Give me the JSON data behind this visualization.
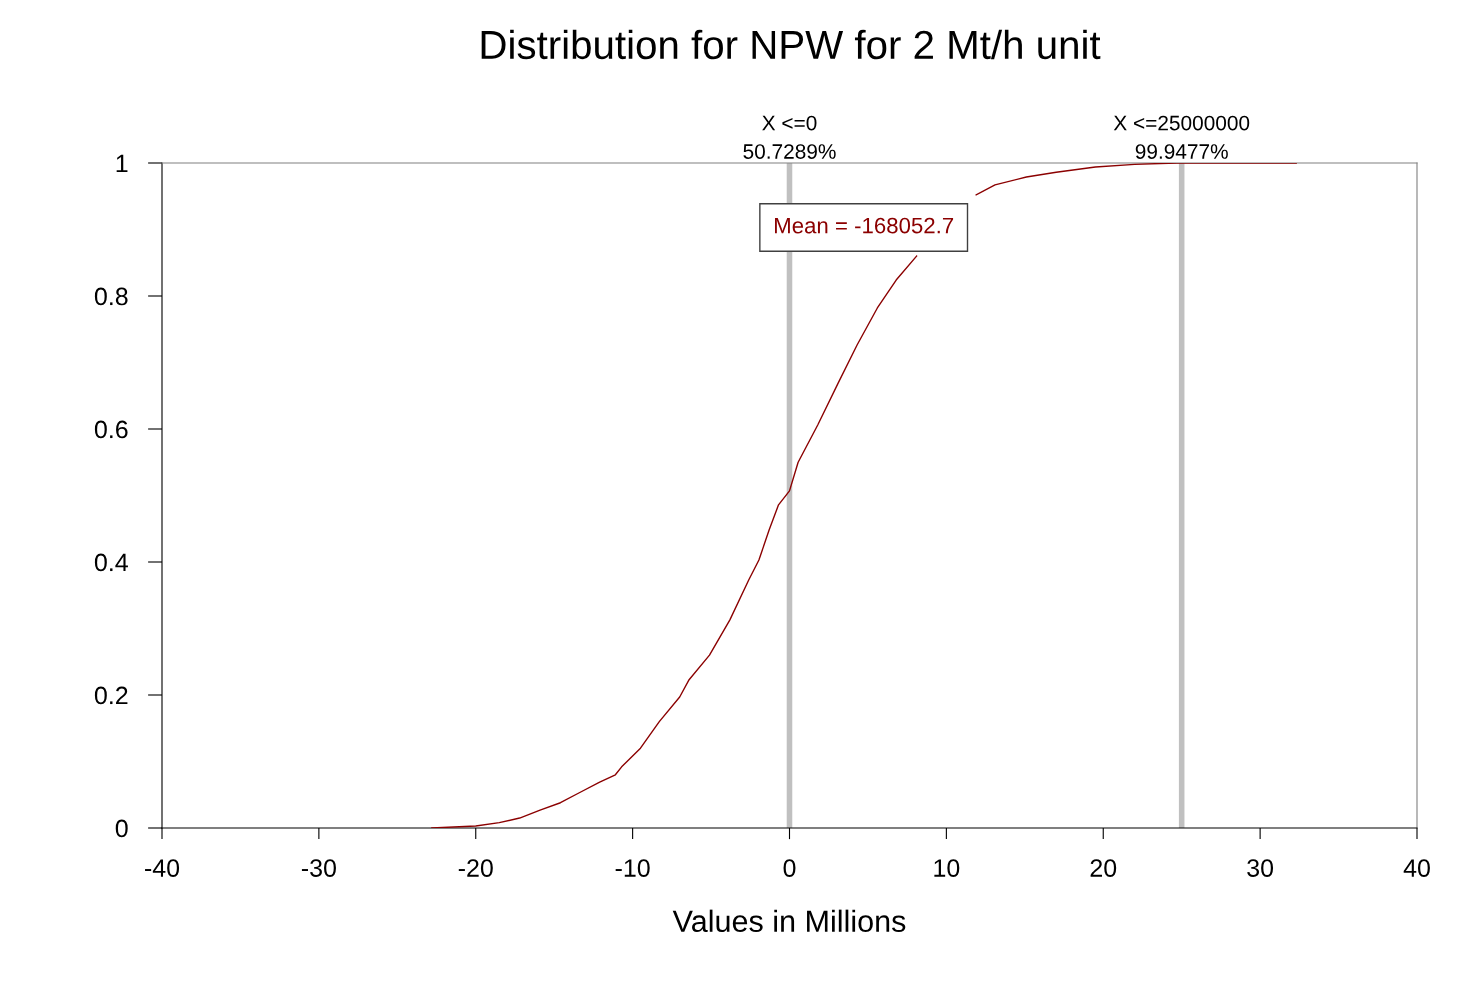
{
  "chart_data": {
    "type": "line",
    "title": "Distribution for NPW for 2 Mt/h unit",
    "xlabel": "Values in Millions",
    "x": [
      -22.8,
      -20,
      -18.5,
      -17.2,
      -15.9,
      -14.6,
      -13.4,
      -12.1,
      -11.1,
      -10.7,
      -9.5,
      -8.3,
      -7.0,
      -6.4,
      -5.1,
      -3.8,
      -2.6,
      -1.95,
      -1.3,
      -0.7,
      0,
      0.55,
      1.8,
      3.1,
      4.3,
      5.6,
      6.8,
      8.1,
      9.4,
      10.6,
      11.9,
      13.1,
      15.1,
      17.0,
      19.5,
      22.0,
      24.7,
      32.3
    ],
    "series": [
      {
        "color": "#8b0000",
        "values": [
          0,
          0.003,
          0.008,
          0.015,
          0.027,
          0.038,
          0.053,
          0.069,
          0.08,
          0.092,
          0.12,
          0.16,
          0.197,
          0.223,
          0.26,
          0.313,
          0.373,
          0.403,
          0.448,
          0.486,
          0.507,
          0.55,
          0.606,
          0.669,
          0.726,
          0.782,
          0.824,
          0.86,
          null,
          null,
          0.952,
          0.967,
          0.979,
          0.986,
          0.994,
          0.998,
          1.0,
          1.0
        ]
      }
    ],
    "xlim": [
      -40,
      40
    ],
    "xticks": [
      -40,
      -30,
      -20,
      -10,
      0,
      10,
      20,
      30,
      40
    ],
    "ylim": [
      0,
      1
    ],
    "yticks": [
      0,
      0.2,
      0.4,
      0.6,
      0.8,
      1
    ],
    "ref_lines": [
      {
        "axis": "x",
        "value": 0,
        "label": "X <=0\n50.7289%",
        "color": "#c0c0c0"
      },
      {
        "axis": "x",
        "value": 25,
        "label": "X <=25000000\n99.9477%",
        "color": "#c0c0c0"
      }
    ],
    "annotations": [
      "Mean = -168052.7"
    ],
    "grid": false,
    "legend": false,
    "marker": "none",
    "line_style": "solid"
  }
}
